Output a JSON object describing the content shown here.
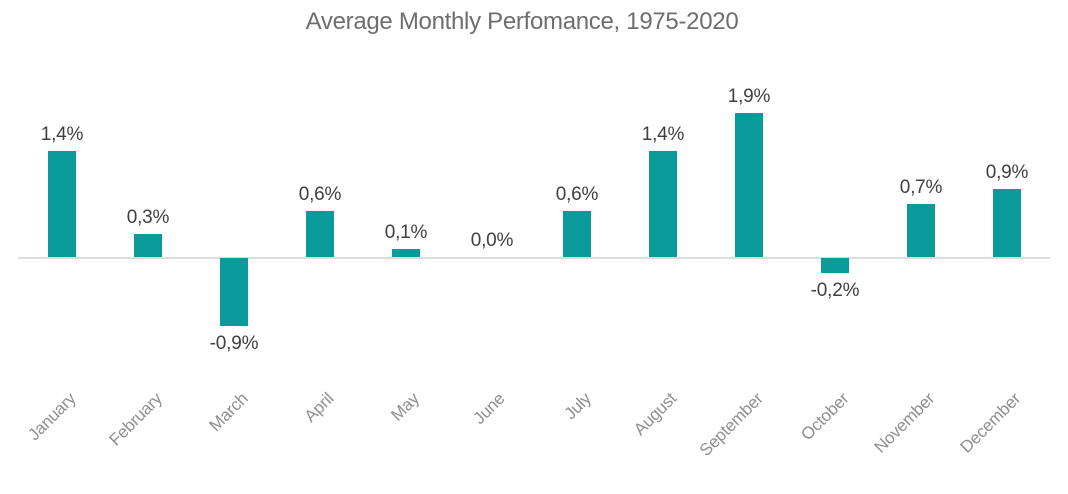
{
  "page": {
    "background": "#ffffff"
  },
  "colors": {
    "bar": "#0b9a9a",
    "axis_line": "#dcdcdc",
    "title_text": "#6e6e6e",
    "value_label_text": "#3f3f3f",
    "month_label_text": "#8f8f8f"
  },
  "chart_data": {
    "type": "bar",
    "title": "Average Monthly Perfomance, 1975-2020",
    "categories": [
      "January",
      "February",
      "March",
      "April",
      "May",
      "June",
      "July",
      "August",
      "September",
      "October",
      "November",
      "December"
    ],
    "values": [
      1.4,
      0.3,
      -0.9,
      0.6,
      0.1,
      0.0,
      0.6,
      1.4,
      1.9,
      -0.2,
      0.7,
      0.9
    ],
    "value_labels": [
      "1,4%",
      "0,3%",
      "-0,9%",
      "0,6%",
      "0,1%",
      "0,0%",
      "0,6%",
      "1,4%",
      "1,9%",
      "-0,2%",
      "0,7%",
      "0,9%"
    ],
    "xlabel": "",
    "ylabel": "",
    "ylim": [
      -1.2,
      2.1
    ],
    "grid": false,
    "legend": "none",
    "decimal_separator": ",",
    "bar_color": "#0b9a9a",
    "baseline_value": 0
  }
}
